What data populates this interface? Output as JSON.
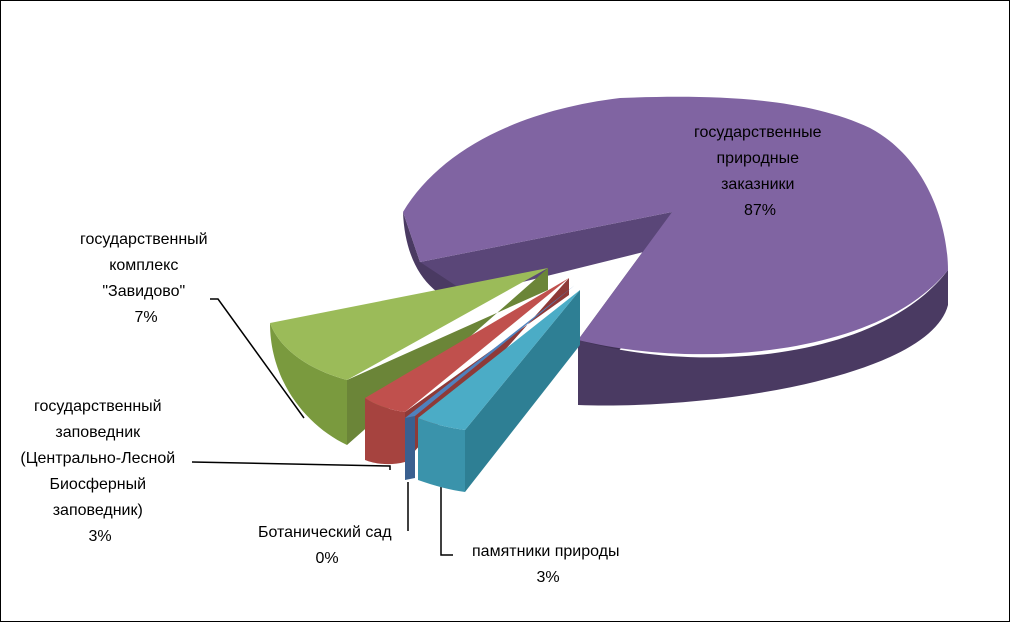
{
  "chart_data": {
    "type": "pie",
    "style": "3d-exploded",
    "title": "",
    "slices": [
      {
        "key": "zakazniki",
        "label_lines": [
          "государственные",
          "природные",
          "заказники"
        ],
        "value": 87,
        "value_label": "87%",
        "color": "#8064A2"
      },
      {
        "key": "zavidovo",
        "label_lines": [
          "государственный",
          "комплекс",
          "\"Завидово\""
        ],
        "value": 7,
        "value_label": "7%",
        "color": "#9BBB59"
      },
      {
        "key": "zapovednik",
        "label_lines": [
          "государственный",
          "заповедник",
          "(Центрально-Лесной",
          "Биосферный",
          "заповедник)"
        ],
        "value": 3,
        "value_label": "3%",
        "color": "#C0504D"
      },
      {
        "key": "botsad",
        "label_lines": [
          "Ботанический сад"
        ],
        "value": 0,
        "value_label": "0%",
        "color": "#4F81BD"
      },
      {
        "key": "pamyatniki",
        "label_lines": [
          "памятники природы"
        ],
        "value": 3,
        "value_label": "3%",
        "color": "#4BACC6"
      }
    ]
  }
}
